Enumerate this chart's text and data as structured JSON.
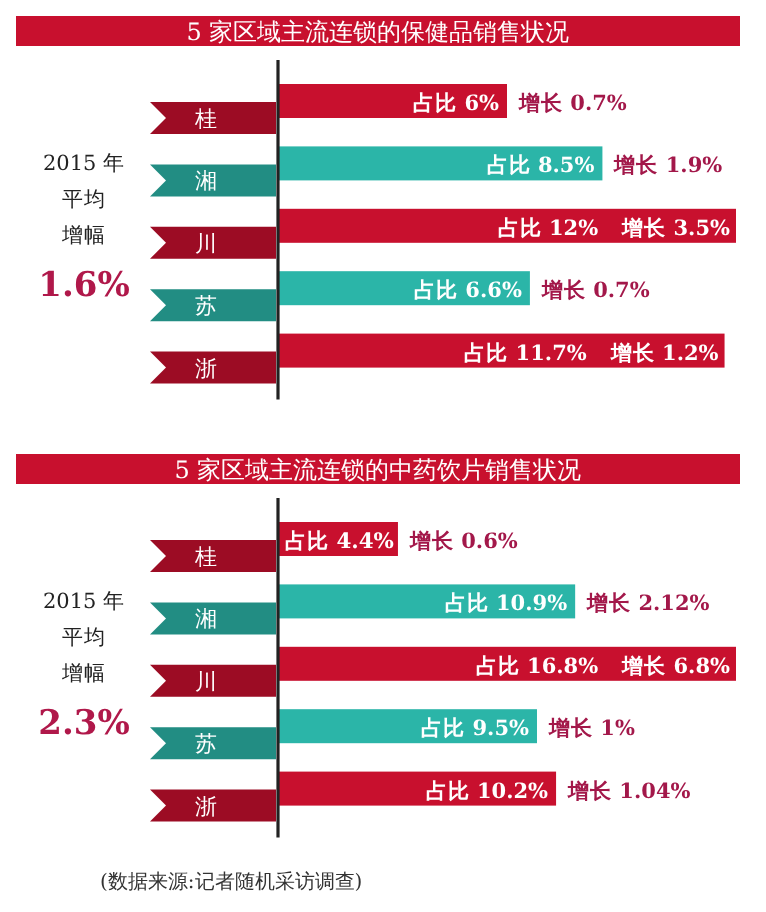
{
  "chart_data": [
    {
      "type": "bar",
      "orientation": "horizontal",
      "title": "5 家区域主流连锁的保健品销售状况",
      "categories": [
        "桂",
        "湘",
        "川",
        "苏",
        "浙"
      ],
      "values": [
        6,
        8.5,
        12,
        6.6,
        11.7
      ],
      "colors": [
        "#c8102e",
        "#2bb5a8",
        "#c8102e",
        "#2bb5a8",
        "#c8102e"
      ],
      "value_labels": [
        "占比 6%",
        "占比 8.5%",
        "占比 12%",
        "占比 6.6%",
        "占比 11.7%"
      ],
      "annotations": [
        {
          "text": "增长 0.7%",
          "x": 6,
          "y": "桂"
        },
        {
          "text": "增长 1.9%",
          "x": 8.5,
          "y": "湘"
        },
        {
          "text": "增长 3.5%",
          "x": 12,
          "y": "川"
        },
        {
          "text": "增长 0.7%",
          "x": 6.6,
          "y": "苏"
        },
        {
          "text": "增长 1.2%",
          "x": 11.7,
          "y": "浙"
        },
        "2015 年",
        "平均",
        "增幅",
        "1.6%"
      ],
      "ref_lines": [
        {
          "axis": "x",
          "value": 0,
          "color": "#222222"
        }
      ]
    },
    {
      "type": "bar",
      "orientation": "horizontal",
      "title": "5 家区域主流连锁的中药饮片销售状况",
      "categories": [
        "桂",
        "湘",
        "川",
        "苏",
        "浙"
      ],
      "values": [
        4.4,
        10.9,
        16.8,
        9.5,
        10.2
      ],
      "colors": [
        "#c8102e",
        "#2bb5a8",
        "#c8102e",
        "#2bb5a8",
        "#c8102e"
      ],
      "value_labels": [
        "占比 4.4%",
        "占比 10.9%",
        "占比 16.8%",
        "占比 9.5%",
        "占比 10.2%"
      ],
      "annotations": [
        {
          "text": "增长 0.6%",
          "x": 4.4,
          "y": "桂"
        },
        {
          "text": "增长 2.12%",
          "x": 10.9,
          "y": "湘"
        },
        {
          "text": "增长 6.8%",
          "x": 16.8,
          "y": "川"
        },
        {
          "text": "增长 1%",
          "x": 9.5,
          "y": "苏"
        },
        {
          "text": "增长 1.04%",
          "x": 10.2,
          "y": "浙"
        },
        "2015 年",
        "平均",
        "增幅",
        "2.3%",
        "(数据来源:记者随机采访调查)"
      ],
      "ref_lines": [
        {
          "axis": "x",
          "value": 0,
          "color": "#222222"
        }
      ]
    }
  ]
}
